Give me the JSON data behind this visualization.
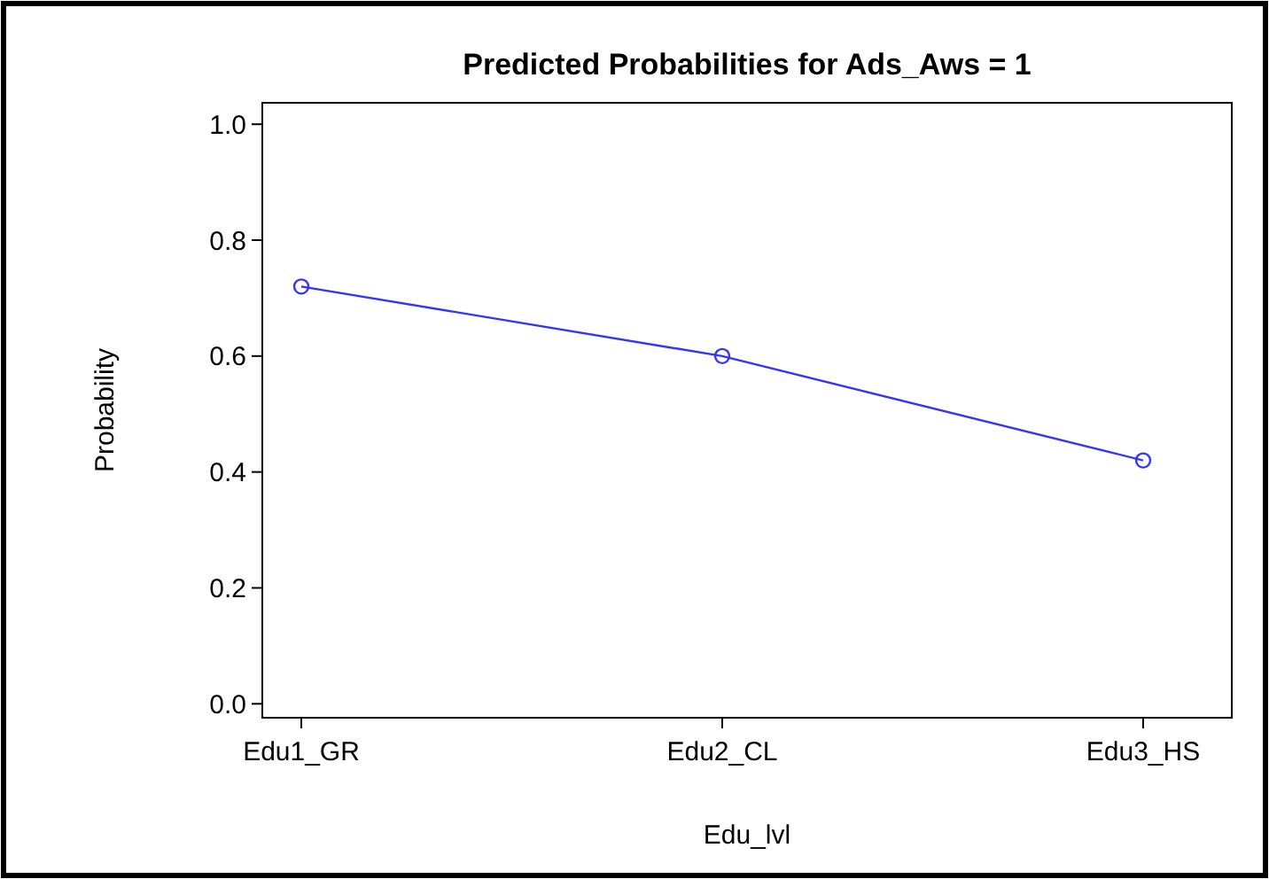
{
  "chart_data": {
    "type": "line",
    "title": "Predicted Probabilities for Ads_Aws = 1",
    "xlabel": "Edu_lvl",
    "ylabel": "Probability",
    "categories": [
      "Edu1_GR",
      "Edu2_CL",
      "Edu3_HS"
    ],
    "series": [
      {
        "color": "#3333ff",
        "values": [
          0.72,
          0.6,
          0.42
        ]
      }
    ],
    "ylim": [
      -0.024,
      1.037
    ],
    "yticks": [
      {
        "value": 0,
        "label": "0.0"
      },
      {
        "value": 0.2,
        "label": "0.2"
      },
      {
        "value": 0.4,
        "label": "0.4"
      },
      {
        "value": 0.6,
        "label": "0.6"
      },
      {
        "value": 0.8,
        "label": "0.8"
      },
      {
        "value": 1,
        "label": "1.0"
      }
    ],
    "marker": "circle",
    "line_style": "solid",
    "grid": false
  }
}
